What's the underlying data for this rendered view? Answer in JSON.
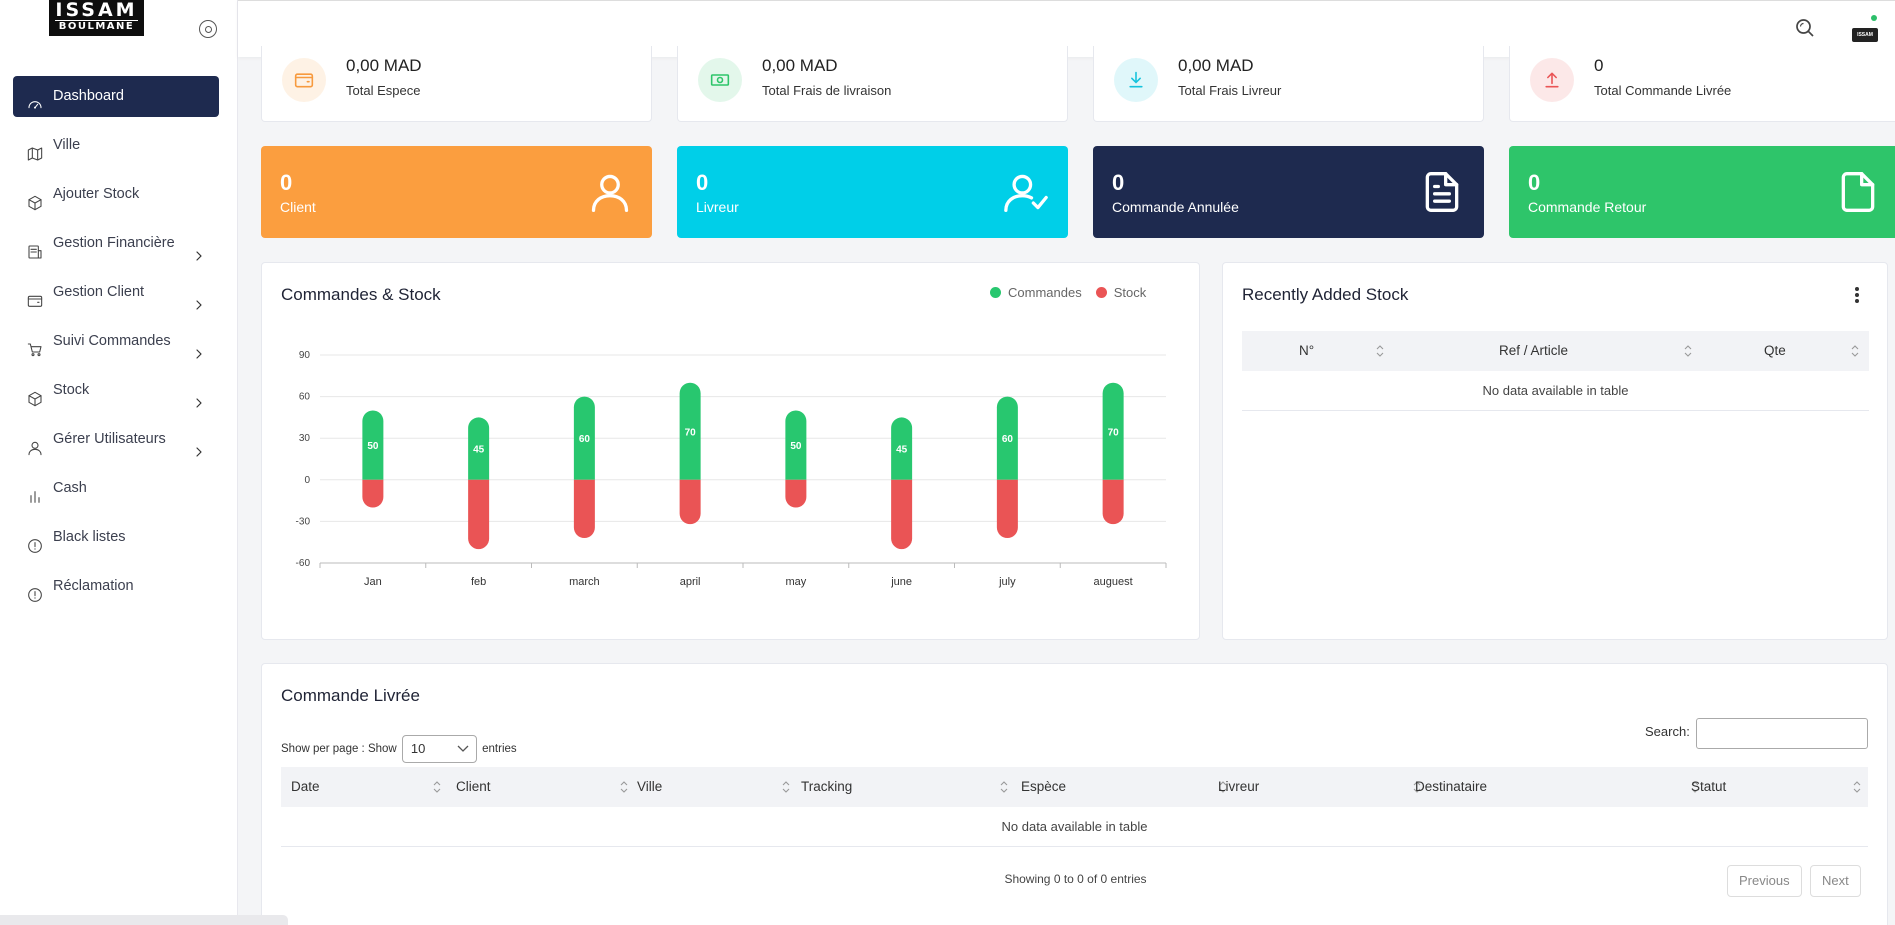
{
  "brand": {
    "line1": "ISSAM",
    "line2": "BOULMANE"
  },
  "sidebar": {
    "items": [
      {
        "label": "Dashboard",
        "icon": "dashboard-icon",
        "active": true,
        "submenu": false
      },
      {
        "label": "Ville",
        "icon": "map-icon",
        "active": false,
        "submenu": false
      },
      {
        "label": "Ajouter Stock",
        "icon": "box-icon",
        "active": false,
        "submenu": false
      },
      {
        "label": "Gestion Financière",
        "icon": "finance-icon",
        "active": false,
        "submenu": true
      },
      {
        "label": "Gestion Client",
        "icon": "wallet-icon",
        "active": false,
        "submenu": true
      },
      {
        "label": "Suivi Commandes",
        "icon": "cart-icon",
        "active": false,
        "submenu": true
      },
      {
        "label": "Stock",
        "icon": "box-icon",
        "active": false,
        "submenu": true
      },
      {
        "label": "Gérer Utilisateurs",
        "icon": "user-icon",
        "active": false,
        "submenu": true
      },
      {
        "label": "Cash",
        "icon": "bar-chart-icon",
        "active": false,
        "submenu": false
      },
      {
        "label": "Black listes",
        "icon": "alert-circle-icon",
        "active": false,
        "submenu": false
      },
      {
        "label": "Réclamation",
        "icon": "alert-circle-icon",
        "active": false,
        "submenu": false
      }
    ]
  },
  "stats": [
    {
      "value": "0,00 MAD",
      "label": "Total Espece",
      "icon": "wallet-icon",
      "color": "#f79a3e"
    },
    {
      "value": "0,00 MAD",
      "label": "Total Frais de livraison",
      "icon": "money-icon",
      "color": "#2ec56a"
    },
    {
      "value": "0,00 MAD",
      "label": "Total Frais Livreur",
      "icon": "download-icon",
      "color": "#16c3dc"
    },
    {
      "value": "0",
      "label": "Total Commande Livrée",
      "icon": "upload-icon",
      "color": "#ea5455"
    }
  ],
  "counts": [
    {
      "value": "0",
      "label": "Client",
      "icon": "user-icon",
      "color": "#fb9e3f"
    },
    {
      "value": "0",
      "label": "Livreur",
      "icon": "user-check-icon",
      "color": "#00cfe8"
    },
    {
      "value": "0",
      "label": "Commande Annulée",
      "icon": "file-text-icon",
      "color": "#1e2a4f"
    },
    {
      "value": "0",
      "label": "Commande Retour",
      "icon": "file-icon",
      "color": "#2ec56a"
    }
  ],
  "chart": {
    "title": "Commandes & Stock",
    "chart_data": {
      "type": "bar",
      "title": "Commandes & Stock",
      "categories": [
        "Jan",
        "feb",
        "march",
        "april",
        "may",
        "june",
        "july",
        "auguest"
      ],
      "series": [
        {
          "name": "Commandes",
          "color": "#28c76f",
          "values": [
            50,
            45,
            60,
            70,
            50,
            45,
            60,
            70
          ]
        },
        {
          "name": "Stock",
          "color": "#ea5455",
          "values": [
            -20,
            -50,
            -42,
            -32,
            -20,
            -50,
            -42,
            -32
          ]
        }
      ],
      "y_ticks": [
        90,
        60,
        30,
        0,
        -30,
        -60
      ],
      "ylim": [
        -60,
        90
      ],
      "stacked": true,
      "data_labels": "Commandes values",
      "legend": "top-right",
      "grid": true
    }
  },
  "recent_stock": {
    "title": "Recently Added Stock",
    "columns": [
      "N°",
      "Ref / Article",
      "Qte"
    ],
    "empty_text": "No data available in table"
  },
  "livree": {
    "title": "Commande Livrée",
    "show_prefix": "Show per page : Show",
    "per_page": "10",
    "show_suffix": "entries",
    "search_label": "Search:",
    "columns": [
      "Date",
      "Client",
      "Ville",
      "Tracking",
      "Espèce",
      "Livreur",
      "Destinataire",
      "Statut"
    ],
    "empty_text": "No data available in table",
    "showing": "Showing 0 to 0 of 0 entries",
    "prev": "Previous",
    "next": "Next"
  }
}
